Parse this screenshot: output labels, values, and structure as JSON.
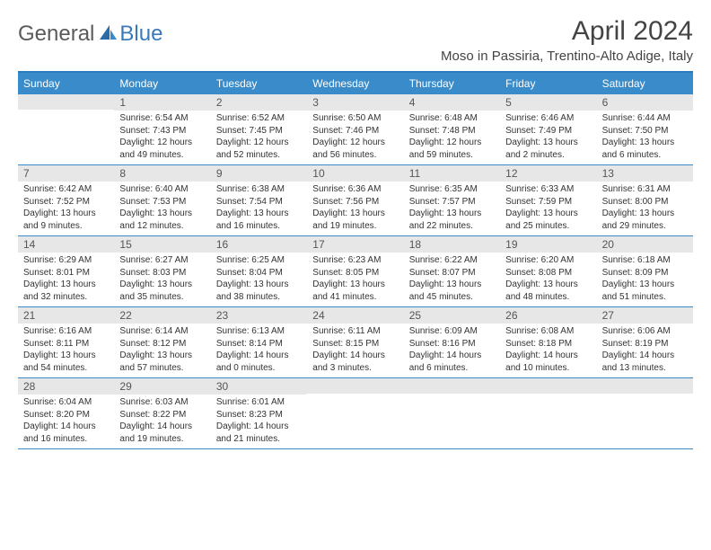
{
  "brand": {
    "part1": "General",
    "part2": "Blue"
  },
  "title": "April 2024",
  "location": "Moso in Passiria, Trentino-Alto Adige, Italy",
  "colors": {
    "header_bg": "#3a8bc9",
    "header_border": "#2b7bbf",
    "daynum_bg": "#e7e7e7",
    "text": "#333333",
    "brand_gray": "#5a5a5a",
    "brand_blue": "#3a7ab8"
  },
  "weekdays": [
    "Sunday",
    "Monday",
    "Tuesday",
    "Wednesday",
    "Thursday",
    "Friday",
    "Saturday"
  ],
  "weeks": [
    [
      null,
      {
        "n": "1",
        "sr": "Sunrise: 6:54 AM",
        "ss": "Sunset: 7:43 PM",
        "dl": "Daylight: 12 hours and 49 minutes."
      },
      {
        "n": "2",
        "sr": "Sunrise: 6:52 AM",
        "ss": "Sunset: 7:45 PM",
        "dl": "Daylight: 12 hours and 52 minutes."
      },
      {
        "n": "3",
        "sr": "Sunrise: 6:50 AM",
        "ss": "Sunset: 7:46 PM",
        "dl": "Daylight: 12 hours and 56 minutes."
      },
      {
        "n": "4",
        "sr": "Sunrise: 6:48 AM",
        "ss": "Sunset: 7:48 PM",
        "dl": "Daylight: 12 hours and 59 minutes."
      },
      {
        "n": "5",
        "sr": "Sunrise: 6:46 AM",
        "ss": "Sunset: 7:49 PM",
        "dl": "Daylight: 13 hours and 2 minutes."
      },
      {
        "n": "6",
        "sr": "Sunrise: 6:44 AM",
        "ss": "Sunset: 7:50 PM",
        "dl": "Daylight: 13 hours and 6 minutes."
      }
    ],
    [
      {
        "n": "7",
        "sr": "Sunrise: 6:42 AM",
        "ss": "Sunset: 7:52 PM",
        "dl": "Daylight: 13 hours and 9 minutes."
      },
      {
        "n": "8",
        "sr": "Sunrise: 6:40 AM",
        "ss": "Sunset: 7:53 PM",
        "dl": "Daylight: 13 hours and 12 minutes."
      },
      {
        "n": "9",
        "sr": "Sunrise: 6:38 AM",
        "ss": "Sunset: 7:54 PM",
        "dl": "Daylight: 13 hours and 16 minutes."
      },
      {
        "n": "10",
        "sr": "Sunrise: 6:36 AM",
        "ss": "Sunset: 7:56 PM",
        "dl": "Daylight: 13 hours and 19 minutes."
      },
      {
        "n": "11",
        "sr": "Sunrise: 6:35 AM",
        "ss": "Sunset: 7:57 PM",
        "dl": "Daylight: 13 hours and 22 minutes."
      },
      {
        "n": "12",
        "sr": "Sunrise: 6:33 AM",
        "ss": "Sunset: 7:59 PM",
        "dl": "Daylight: 13 hours and 25 minutes."
      },
      {
        "n": "13",
        "sr": "Sunrise: 6:31 AM",
        "ss": "Sunset: 8:00 PM",
        "dl": "Daylight: 13 hours and 29 minutes."
      }
    ],
    [
      {
        "n": "14",
        "sr": "Sunrise: 6:29 AM",
        "ss": "Sunset: 8:01 PM",
        "dl": "Daylight: 13 hours and 32 minutes."
      },
      {
        "n": "15",
        "sr": "Sunrise: 6:27 AM",
        "ss": "Sunset: 8:03 PM",
        "dl": "Daylight: 13 hours and 35 minutes."
      },
      {
        "n": "16",
        "sr": "Sunrise: 6:25 AM",
        "ss": "Sunset: 8:04 PM",
        "dl": "Daylight: 13 hours and 38 minutes."
      },
      {
        "n": "17",
        "sr": "Sunrise: 6:23 AM",
        "ss": "Sunset: 8:05 PM",
        "dl": "Daylight: 13 hours and 41 minutes."
      },
      {
        "n": "18",
        "sr": "Sunrise: 6:22 AM",
        "ss": "Sunset: 8:07 PM",
        "dl": "Daylight: 13 hours and 45 minutes."
      },
      {
        "n": "19",
        "sr": "Sunrise: 6:20 AM",
        "ss": "Sunset: 8:08 PM",
        "dl": "Daylight: 13 hours and 48 minutes."
      },
      {
        "n": "20",
        "sr": "Sunrise: 6:18 AM",
        "ss": "Sunset: 8:09 PM",
        "dl": "Daylight: 13 hours and 51 minutes."
      }
    ],
    [
      {
        "n": "21",
        "sr": "Sunrise: 6:16 AM",
        "ss": "Sunset: 8:11 PM",
        "dl": "Daylight: 13 hours and 54 minutes."
      },
      {
        "n": "22",
        "sr": "Sunrise: 6:14 AM",
        "ss": "Sunset: 8:12 PM",
        "dl": "Daylight: 13 hours and 57 minutes."
      },
      {
        "n": "23",
        "sr": "Sunrise: 6:13 AM",
        "ss": "Sunset: 8:14 PM",
        "dl": "Daylight: 14 hours and 0 minutes."
      },
      {
        "n": "24",
        "sr": "Sunrise: 6:11 AM",
        "ss": "Sunset: 8:15 PM",
        "dl": "Daylight: 14 hours and 3 minutes."
      },
      {
        "n": "25",
        "sr": "Sunrise: 6:09 AM",
        "ss": "Sunset: 8:16 PM",
        "dl": "Daylight: 14 hours and 6 minutes."
      },
      {
        "n": "26",
        "sr": "Sunrise: 6:08 AM",
        "ss": "Sunset: 8:18 PM",
        "dl": "Daylight: 14 hours and 10 minutes."
      },
      {
        "n": "27",
        "sr": "Sunrise: 6:06 AM",
        "ss": "Sunset: 8:19 PM",
        "dl": "Daylight: 14 hours and 13 minutes."
      }
    ],
    [
      {
        "n": "28",
        "sr": "Sunrise: 6:04 AM",
        "ss": "Sunset: 8:20 PM",
        "dl": "Daylight: 14 hours and 16 minutes."
      },
      {
        "n": "29",
        "sr": "Sunrise: 6:03 AM",
        "ss": "Sunset: 8:22 PM",
        "dl": "Daylight: 14 hours and 19 minutes."
      },
      {
        "n": "30",
        "sr": "Sunrise: 6:01 AM",
        "ss": "Sunset: 8:23 PM",
        "dl": "Daylight: 14 hours and 21 minutes."
      },
      null,
      null,
      null,
      null
    ]
  ]
}
